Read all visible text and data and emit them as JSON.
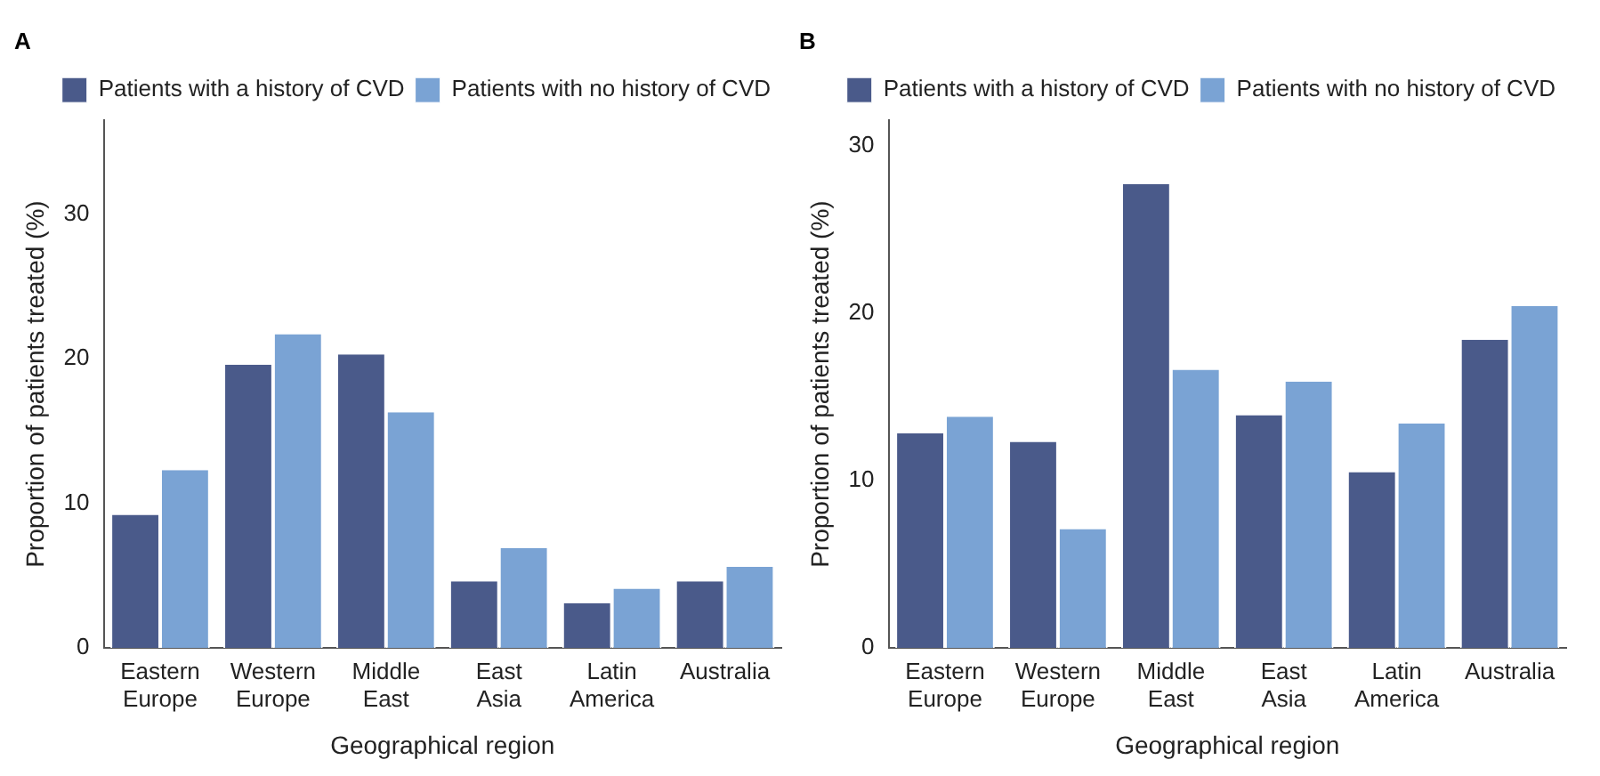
{
  "chart_data": [
    {
      "type": "bar",
      "title": "A",
      "xlabel": "Geographical region",
      "ylabel": "Proportion of patients treated (%)",
      "categories": [
        "Eastern Europe",
        "Western Europe",
        "Middle East",
        "East Asia",
        "Latin America",
        "Australia"
      ],
      "series": [
        {
          "name": "Patients with a history of CVD",
          "color": "#4a5a8a",
          "values": [
            9.2,
            19.6,
            20.3,
            4.6,
            3.1,
            4.6
          ]
        },
        {
          "name": "Patients with no history of CVD",
          "color": "#7aa3d4",
          "values": [
            12.3,
            21.7,
            16.3,
            6.9,
            4.1,
            5.6
          ]
        }
      ],
      "ylim": [
        0,
        36.5
      ],
      "yticks": [
        0,
        10,
        20,
        30
      ],
      "grid": false,
      "legend": "top right"
    },
    {
      "type": "bar",
      "title": "B",
      "xlabel": "Geographical region",
      "ylabel": "Proportion of patients treated (%)",
      "categories": [
        "Eastern Europe",
        "Western Europe",
        "Middle East",
        "East Asia",
        "Latin America",
        "Australia"
      ],
      "series": [
        {
          "name": "Patients with a history of CVD",
          "color": "#4a5a8a",
          "values": [
            12.8,
            12.3,
            27.7,
            13.9,
            10.5,
            18.4
          ]
        },
        {
          "name": "Patients with no history of CVD",
          "color": "#7aa3d4",
          "values": [
            13.8,
            7.1,
            16.6,
            15.9,
            13.4,
            20.4
          ]
        }
      ],
      "ylim": [
        0,
        31.5
      ],
      "yticks": [
        0,
        10,
        20,
        30
      ],
      "grid": false,
      "legend": "top right"
    }
  ]
}
